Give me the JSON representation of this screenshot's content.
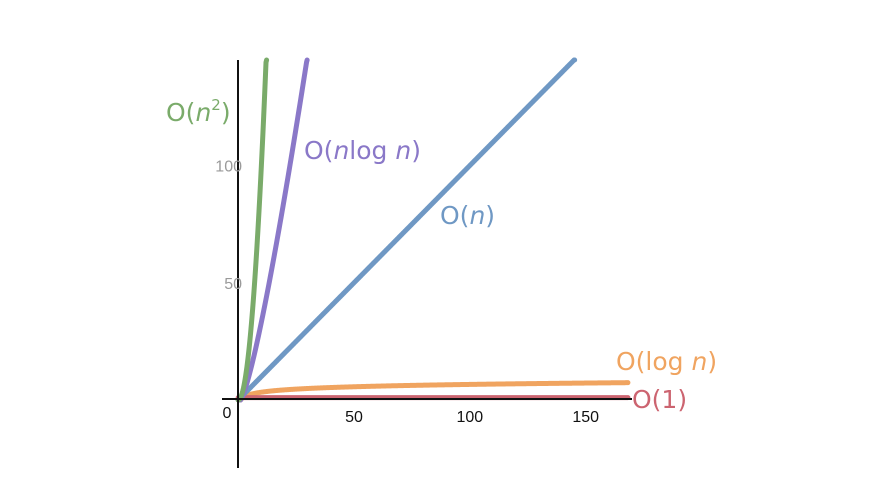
{
  "chart_data": {
    "type": "line",
    "title": "",
    "xlabel": "",
    "ylabel": "",
    "xlim": [
      -7,
      170
    ],
    "ylim": [
      -29,
      145
    ],
    "origin_label": "0",
    "x_ticks": [
      50,
      100,
      150
    ],
    "y_ticks": [
      50,
      100
    ],
    "grid": false,
    "legend": "inline",
    "series": [
      {
        "name": "O(n²)",
        "name_parts": [
          "O(",
          "n",
          "2",
          ")"
        ],
        "function": "n^2",
        "color": "#7aab6a"
      },
      {
        "name": "O(nlog n)",
        "name_parts": [
          "O(",
          "n",
          "log ",
          "n",
          ")"
        ],
        "function": "n log n",
        "color": "#8a78c8"
      },
      {
        "name": "O(n)",
        "name_parts": [
          "O(",
          "n",
          ")"
        ],
        "function": "n",
        "color": "#6f98c4"
      },
      {
        "name": "O(log n)",
        "name_parts": [
          "O(log ",
          "n",
          ")"
        ],
        "function": "log n",
        "color": "#f0a460"
      },
      {
        "name": "O(1)",
        "name_parts": [
          "O(1)"
        ],
        "function": "1",
        "color": "#cc6470"
      }
    ]
  }
}
